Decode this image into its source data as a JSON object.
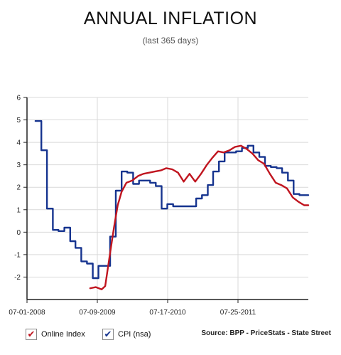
{
  "title": "ANNUAL INFLATION",
  "subtitle": "(last 365 days)",
  "source": "Source: BPP - PriceStats - State Street",
  "colors": {
    "online": "#c0151f",
    "cpi": "#16348f",
    "grid": "#d9d9d9",
    "axis": "#222222"
  },
  "legend": [
    {
      "label": "Online Index",
      "color": "#c0151f",
      "icon": "check-icon"
    },
    {
      "label": "CPI (nsa)",
      "color": "#16348f",
      "icon": "check-icon"
    }
  ],
  "chart_data": {
    "type": "line",
    "title": "ANNUAL INFLATION",
    "subtitle": "(last 365 days)",
    "x_ticks": [
      "07-01-2008",
      "07-09-2009",
      "07-17-2010",
      "07-25-2011"
    ],
    "x_tick_dates": [
      "2008-07-01",
      "2009-07-09",
      "2010-07-17",
      "2011-07-25"
    ],
    "xlim": [
      "2008-07-01",
      "2012-08-01"
    ],
    "ylim": [
      -3,
      6
    ],
    "y_ticks": [
      6,
      5,
      4,
      3,
      2,
      1,
      0,
      -1,
      -2
    ],
    "grid": true,
    "legend_position": "bottom-left",
    "series": [
      {
        "name": "CPI (nsa)",
        "step": true,
        "color": "#16348f",
        "points": [
          [
            "2008-08-15",
            4.95
          ],
          [
            "2008-09-15",
            3.65
          ],
          [
            "2008-10-15",
            1.05
          ],
          [
            "2008-11-15",
            0.1
          ],
          [
            "2008-12-15",
            0.05
          ],
          [
            "2009-01-15",
            0.2
          ],
          [
            "2009-02-15",
            -0.4
          ],
          [
            "2009-03-15",
            -0.7
          ],
          [
            "2009-04-15",
            -1.3
          ],
          [
            "2009-05-15",
            -1.4
          ],
          [
            "2009-06-15",
            -2.05
          ],
          [
            "2009-07-15",
            -1.5
          ],
          [
            "2009-08-15",
            -1.5
          ],
          [
            "2009-09-15",
            -0.2
          ],
          [
            "2009-10-15",
            1.85
          ],
          [
            "2009-11-15",
            2.7
          ],
          [
            "2009-12-15",
            2.65
          ],
          [
            "2010-01-15",
            2.15
          ],
          [
            "2010-02-15",
            2.3
          ],
          [
            "2010-03-15",
            2.3
          ],
          [
            "2010-04-15",
            2.2
          ],
          [
            "2010-05-15",
            2.05
          ],
          [
            "2010-06-15",
            1.05
          ],
          [
            "2010-07-15",
            1.25
          ],
          [
            "2010-08-15",
            1.15
          ],
          [
            "2010-09-15",
            1.15
          ],
          [
            "2010-10-15",
            1.15
          ],
          [
            "2010-11-15",
            1.15
          ],
          [
            "2010-12-15",
            1.5
          ],
          [
            "2011-01-15",
            1.65
          ],
          [
            "2011-02-15",
            2.1
          ],
          [
            "2011-03-15",
            2.7
          ],
          [
            "2011-04-15",
            3.15
          ],
          [
            "2011-05-15",
            3.55
          ],
          [
            "2011-06-15",
            3.55
          ],
          [
            "2011-07-15",
            3.6
          ],
          [
            "2011-08-15",
            3.75
          ],
          [
            "2011-09-15",
            3.85
          ],
          [
            "2011-10-15",
            3.55
          ],
          [
            "2011-11-15",
            3.35
          ],
          [
            "2011-12-15",
            2.95
          ],
          [
            "2012-01-15",
            2.9
          ],
          [
            "2012-02-15",
            2.85
          ],
          [
            "2012-03-15",
            2.65
          ],
          [
            "2012-04-15",
            2.3
          ],
          [
            "2012-05-15",
            1.7
          ],
          [
            "2012-06-15",
            1.65
          ],
          [
            "2012-08-01",
            1.65
          ]
        ]
      },
      {
        "name": "Online Index",
        "step": false,
        "color": "#c0151f",
        "points": [
          [
            "2009-06-01",
            -2.5
          ],
          [
            "2009-07-01",
            -2.45
          ],
          [
            "2009-08-01",
            -2.55
          ],
          [
            "2009-08-20",
            -2.4
          ],
          [
            "2009-09-10",
            -1.2
          ],
          [
            "2009-10-05",
            0.2
          ],
          [
            "2009-10-25",
            1.2
          ],
          [
            "2009-11-15",
            1.8
          ],
          [
            "2009-12-10",
            2.2
          ],
          [
            "2010-01-10",
            2.3
          ],
          [
            "2010-02-10",
            2.5
          ],
          [
            "2010-03-10",
            2.6
          ],
          [
            "2010-04-10",
            2.65
          ],
          [
            "2010-05-10",
            2.7
          ],
          [
            "2010-06-10",
            2.75
          ],
          [
            "2010-07-10",
            2.85
          ],
          [
            "2010-08-10",
            2.8
          ],
          [
            "2010-09-10",
            2.65
          ],
          [
            "2010-10-10",
            2.25
          ],
          [
            "2010-11-10",
            2.6
          ],
          [
            "2010-12-10",
            2.25
          ],
          [
            "2011-01-10",
            2.6
          ],
          [
            "2011-02-10",
            3.0
          ],
          [
            "2011-03-10",
            3.3
          ],
          [
            "2011-04-10",
            3.6
          ],
          [
            "2011-05-10",
            3.55
          ],
          [
            "2011-06-10",
            3.65
          ],
          [
            "2011-07-10",
            3.8
          ],
          [
            "2011-08-10",
            3.85
          ],
          [
            "2011-09-10",
            3.7
          ],
          [
            "2011-10-10",
            3.5
          ],
          [
            "2011-11-10",
            3.2
          ],
          [
            "2011-12-10",
            3.05
          ],
          [
            "2012-01-10",
            2.6
          ],
          [
            "2012-02-10",
            2.2
          ],
          [
            "2012-03-10",
            2.1
          ],
          [
            "2012-04-10",
            1.95
          ],
          [
            "2012-05-10",
            1.55
          ],
          [
            "2012-06-10",
            1.35
          ],
          [
            "2012-07-10",
            1.2
          ],
          [
            "2012-08-01",
            1.2
          ]
        ]
      }
    ]
  }
}
